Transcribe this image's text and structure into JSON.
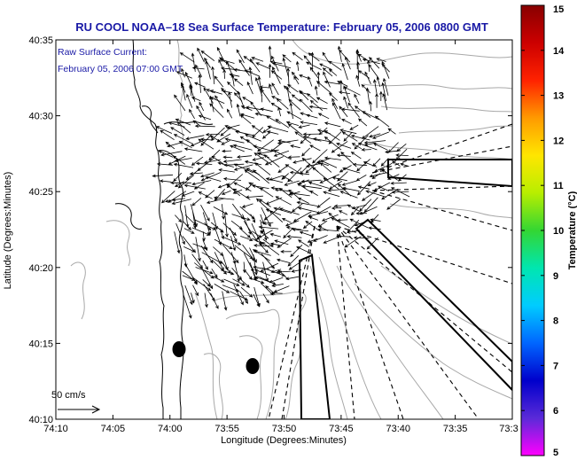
{
  "title": "RU COOL  NOAA–18  Sea Surface Temperature:  February 05, 2006 0800 GMT",
  "overlay": {
    "line1": "Raw Surface Current:",
    "line2": "February 05, 2006 07:00 GMT"
  },
  "axes": {
    "xlabel": "Longitude (Degrees:Minutes)",
    "ylabel": "Latitude (Degrees:Minutes)",
    "x_ticks": [
      "74:10",
      "74:05",
      "74:00",
      "73:55",
      "73:50",
      "73:45",
      "73:40",
      "73:35",
      "73:3"
    ],
    "y_ticks": [
      "40:35",
      "40:30",
      "40:25",
      "40:20",
      "40:15",
      "40:10"
    ]
  },
  "scale_arrow": {
    "label": "50 cm/s"
  },
  "colorbar": {
    "label": "Temperature (°C)",
    "ticks": [
      "15",
      "14",
      "13",
      "12",
      "11",
      "10",
      "9",
      "8",
      "7",
      "6",
      "5"
    ],
    "min": 5,
    "max": 15,
    "stops": [
      "#ff00ff",
      "#5a2ad8",
      "#0000cc",
      "#0066ff",
      "#00ccff",
      "#00e6b0",
      "#33d633",
      "#b8ee00",
      "#ffe600",
      "#ff9a00",
      "#ff2200",
      "#cc0000",
      "#880000"
    ]
  },
  "colors": {
    "title": "#1a1aa6",
    "frame": "#000000",
    "contour": "#a8a8a8"
  }
}
